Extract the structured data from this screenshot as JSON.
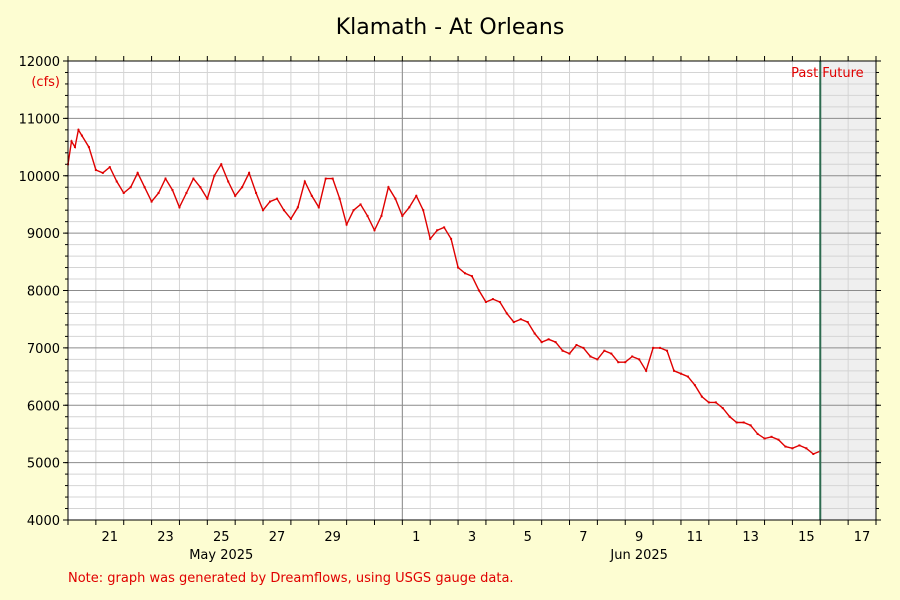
{
  "chart_data": {
    "type": "line",
    "title": "Klamath - At Orleans",
    "ylabel": "(cfs)",
    "ylim": [
      4000,
      12000
    ],
    "yticks": [
      4000,
      5000,
      6000,
      7000,
      8000,
      9000,
      10000,
      11000,
      12000
    ],
    "xlim": [
      "2025-05-20",
      "2025-06-18"
    ],
    "x_ticks": [
      {
        "date": "2025-05-21",
        "label": "21"
      },
      {
        "date": "2025-05-23",
        "label": "23"
      },
      {
        "date": "2025-05-25",
        "label": "25"
      },
      {
        "date": "2025-05-27",
        "label": "27"
      },
      {
        "date": "2025-05-29",
        "label": "29"
      },
      {
        "date": "2025-06-01",
        "label": "1"
      },
      {
        "date": "2025-06-03",
        "label": "3"
      },
      {
        "date": "2025-06-05",
        "label": "5"
      },
      {
        "date": "2025-06-07",
        "label": "7"
      },
      {
        "date": "2025-06-09",
        "label": "9"
      },
      {
        "date": "2025-06-11",
        "label": "11"
      },
      {
        "date": "2025-06-13",
        "label": "13"
      },
      {
        "date": "2025-06-15",
        "label": "15"
      },
      {
        "date": "2025-06-17",
        "label": "17"
      }
    ],
    "month_labels": [
      {
        "date": "2025-05-25",
        "label": "May 2025"
      },
      {
        "date": "2025-06-09",
        "label": "Jun 2025"
      }
    ],
    "now_date": "2025-06-16",
    "past_label": "Past",
    "future_label": "Future",
    "grid": true,
    "series": [
      {
        "color": "#e00000",
        "points": [
          [
            "2025-05-20 00:00",
            10200
          ],
          [
            "2025-05-20 03:00",
            10600
          ],
          [
            "2025-05-20 06:00",
            10500
          ],
          [
            "2025-05-20 09:00",
            10800
          ],
          [
            "2025-05-20 12:00",
            10700
          ],
          [
            "2025-05-20 18:00",
            10500
          ],
          [
            "2025-05-21 00:00",
            10100
          ],
          [
            "2025-05-21 06:00",
            10050
          ],
          [
            "2025-05-21 12:00",
            10150
          ],
          [
            "2025-05-21 18:00",
            9900
          ],
          [
            "2025-05-22 00:00",
            9700
          ],
          [
            "2025-05-22 06:00",
            9800
          ],
          [
            "2025-05-22 12:00",
            10050
          ],
          [
            "2025-05-22 18:00",
            9800
          ],
          [
            "2025-05-23 00:00",
            9550
          ],
          [
            "2025-05-23 06:00",
            9700
          ],
          [
            "2025-05-23 12:00",
            9950
          ],
          [
            "2025-05-23 18:00",
            9750
          ],
          [
            "2025-05-24 00:00",
            9450
          ],
          [
            "2025-05-24 06:00",
            9700
          ],
          [
            "2025-05-24 12:00",
            9950
          ],
          [
            "2025-05-24 18:00",
            9800
          ],
          [
            "2025-05-25 00:00",
            9600
          ],
          [
            "2025-05-25 06:00",
            10000
          ],
          [
            "2025-05-25 12:00",
            10200
          ],
          [
            "2025-05-25 18:00",
            9900
          ],
          [
            "2025-05-26 00:00",
            9650
          ],
          [
            "2025-05-26 06:00",
            9800
          ],
          [
            "2025-05-26 12:00",
            10050
          ],
          [
            "2025-05-26 18:00",
            9700
          ],
          [
            "2025-05-27 00:00",
            9400
          ],
          [
            "2025-05-27 06:00",
            9550
          ],
          [
            "2025-05-27 12:00",
            9600
          ],
          [
            "2025-05-27 18:00",
            9400
          ],
          [
            "2025-05-28 00:00",
            9250
          ],
          [
            "2025-05-28 06:00",
            9450
          ],
          [
            "2025-05-28 12:00",
            9900
          ],
          [
            "2025-05-28 18:00",
            9650
          ],
          [
            "2025-05-29 00:00",
            9450
          ],
          [
            "2025-05-29 06:00",
            9950
          ],
          [
            "2025-05-29 12:00",
            9950
          ],
          [
            "2025-05-29 18:00",
            9600
          ],
          [
            "2025-05-30 00:00",
            9150
          ],
          [
            "2025-05-30 06:00",
            9400
          ],
          [
            "2025-05-30 12:00",
            9500
          ],
          [
            "2025-05-30 18:00",
            9300
          ],
          [
            "2025-05-31 00:00",
            9050
          ],
          [
            "2025-05-31 06:00",
            9300
          ],
          [
            "2025-05-31 12:00",
            9800
          ],
          [
            "2025-05-31 18:00",
            9600
          ],
          [
            "2025-06-01 00:00",
            9300
          ],
          [
            "2025-06-01 06:00",
            9450
          ],
          [
            "2025-06-01 12:00",
            9650
          ],
          [
            "2025-06-01 18:00",
            9400
          ],
          [
            "2025-06-02 00:00",
            8900
          ],
          [
            "2025-06-02 06:00",
            9050
          ],
          [
            "2025-06-02 12:00",
            9100
          ],
          [
            "2025-06-02 18:00",
            8900
          ],
          [
            "2025-06-03 00:00",
            8400
          ],
          [
            "2025-06-03 06:00",
            8300
          ],
          [
            "2025-06-03 12:00",
            8250
          ],
          [
            "2025-06-03 18:00",
            8000
          ],
          [
            "2025-06-04 00:00",
            7800
          ],
          [
            "2025-06-04 06:00",
            7850
          ],
          [
            "2025-06-04 12:00",
            7800
          ],
          [
            "2025-06-04 18:00",
            7600
          ],
          [
            "2025-06-05 00:00",
            7450
          ],
          [
            "2025-06-05 06:00",
            7500
          ],
          [
            "2025-06-05 12:00",
            7450
          ],
          [
            "2025-06-05 18:00",
            7250
          ],
          [
            "2025-06-06 00:00",
            7100
          ],
          [
            "2025-06-06 06:00",
            7150
          ],
          [
            "2025-06-06 12:00",
            7100
          ],
          [
            "2025-06-06 18:00",
            6950
          ],
          [
            "2025-06-07 00:00",
            6900
          ],
          [
            "2025-06-07 06:00",
            7050
          ],
          [
            "2025-06-07 12:00",
            7000
          ],
          [
            "2025-06-07 18:00",
            6850
          ],
          [
            "2025-06-08 00:00",
            6800
          ],
          [
            "2025-06-08 06:00",
            6950
          ],
          [
            "2025-06-08 12:00",
            6900
          ],
          [
            "2025-06-08 18:00",
            6750
          ],
          [
            "2025-06-09 00:00",
            6750
          ],
          [
            "2025-06-09 06:00",
            6850
          ],
          [
            "2025-06-09 12:00",
            6800
          ],
          [
            "2025-06-09 18:00",
            6600
          ],
          [
            "2025-06-10 00:00",
            7000
          ],
          [
            "2025-06-10 06:00",
            7000
          ],
          [
            "2025-06-10 12:00",
            6950
          ],
          [
            "2025-06-10 18:00",
            6600
          ],
          [
            "2025-06-11 00:00",
            6550
          ],
          [
            "2025-06-11 06:00",
            6500
          ],
          [
            "2025-06-11 12:00",
            6350
          ],
          [
            "2025-06-11 18:00",
            6150
          ],
          [
            "2025-06-12 00:00",
            6050
          ],
          [
            "2025-06-12 06:00",
            6050
          ],
          [
            "2025-06-12 12:00",
            5950
          ],
          [
            "2025-06-12 18:00",
            5800
          ],
          [
            "2025-06-13 00:00",
            5700
          ],
          [
            "2025-06-13 06:00",
            5700
          ],
          [
            "2025-06-13 12:00",
            5650
          ],
          [
            "2025-06-13 18:00",
            5500
          ],
          [
            "2025-06-14 00:00",
            5420
          ],
          [
            "2025-06-14 06:00",
            5450
          ],
          [
            "2025-06-14 12:00",
            5400
          ],
          [
            "2025-06-14 18:00",
            5280
          ],
          [
            "2025-06-15 00:00",
            5250
          ],
          [
            "2025-06-15 06:00",
            5300
          ],
          [
            "2025-06-15 12:00",
            5250
          ],
          [
            "2025-06-15 18:00",
            5150
          ],
          [
            "2025-06-16 00:00",
            5200
          ]
        ]
      }
    ]
  },
  "note": "Note: graph was generated by Dreamflows, using USGS gauge data."
}
